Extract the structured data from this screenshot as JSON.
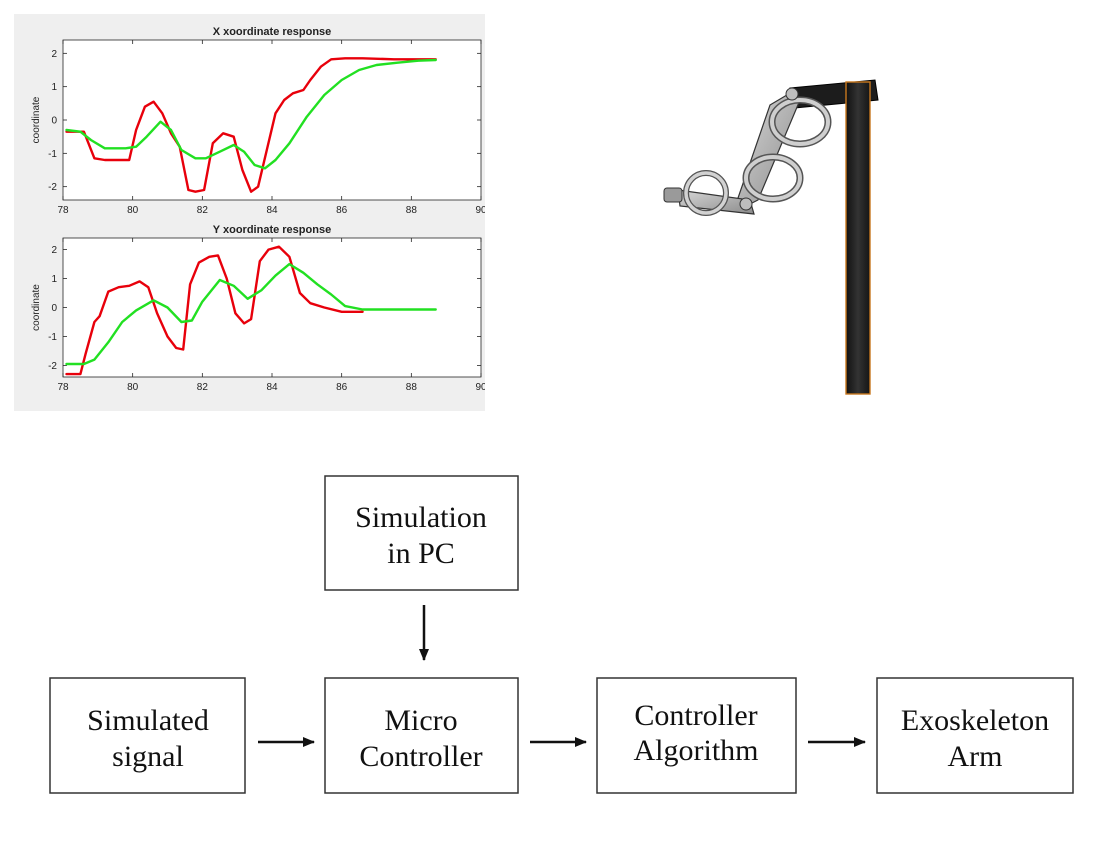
{
  "chart_data": [
    {
      "type": "line",
      "title": "X xoordinate response",
      "xlabel": "",
      "ylabel": "coordinate",
      "xlim": [
        78,
        90
      ],
      "ylim": [
        -2.4,
        2.4
      ],
      "xticks": [
        78,
        80,
        82,
        84,
        86,
        88,
        90
      ],
      "yticks": [
        -2,
        -1,
        0,
        1,
        2
      ],
      "grid": false,
      "series": [
        {
          "color": "#e8000b",
          "x": [
            78.1,
            78.6,
            78.9,
            79.2,
            79.7,
            79.9,
            80.1,
            80.35,
            80.6,
            80.85,
            81.1,
            81.35,
            81.6,
            81.8,
            82.05,
            82.3,
            82.6,
            82.9,
            83.15,
            83.4,
            83.6,
            83.85,
            84.1,
            84.35,
            84.6,
            84.9,
            85.1,
            85.4,
            85.7,
            86.1,
            86.6,
            87.5,
            88.7
          ],
          "y": [
            -0.35,
            -0.35,
            -1.15,
            -1.2,
            -1.2,
            -1.2,
            -0.3,
            0.4,
            0.55,
            0.2,
            -0.4,
            -0.8,
            -2.1,
            -2.15,
            -2.1,
            -0.7,
            -0.4,
            -0.5,
            -1.5,
            -2.15,
            -2.0,
            -0.9,
            0.2,
            0.6,
            0.8,
            0.9,
            1.2,
            1.6,
            1.82,
            1.85,
            1.85,
            1.82,
            1.82
          ]
        },
        {
          "color": "#22e022",
          "x": [
            78.1,
            78.5,
            78.8,
            79.2,
            79.8,
            80.1,
            80.4,
            80.8,
            81.1,
            81.4,
            81.8,
            82.1,
            82.5,
            82.9,
            83.2,
            83.5,
            83.8,
            84.1,
            84.5,
            85.0,
            85.5,
            86.0,
            86.5,
            87.0,
            87.6,
            88.2,
            88.7
          ],
          "y": [
            -0.3,
            -0.35,
            -0.6,
            -0.85,
            -0.85,
            -0.8,
            -0.5,
            -0.05,
            -0.3,
            -0.9,
            -1.15,
            -1.15,
            -0.95,
            -0.75,
            -0.95,
            -1.35,
            -1.45,
            -1.2,
            -0.7,
            0.1,
            0.75,
            1.2,
            1.5,
            1.65,
            1.72,
            1.78,
            1.8
          ]
        }
      ]
    },
    {
      "type": "line",
      "title": "Y xoordinate response",
      "xlabel": "",
      "ylabel": "coordinate",
      "xlim": [
        78,
        90
      ],
      "ylim": [
        -2.4,
        2.4
      ],
      "xticks": [
        78,
        80,
        82,
        84,
        86,
        88,
        90
      ],
      "yticks": [
        -2,
        -1,
        0,
        1,
        2
      ],
      "grid": false,
      "series": [
        {
          "color": "#e8000b",
          "x": [
            78.1,
            78.5,
            78.65,
            78.9,
            79.05,
            79.3,
            79.6,
            79.9,
            80.2,
            80.45,
            80.7,
            81.0,
            81.25,
            81.45,
            81.65,
            81.9,
            82.2,
            82.45,
            82.7,
            82.95,
            83.2,
            83.4,
            83.65,
            83.9,
            84.2,
            84.5,
            84.8,
            85.1,
            85.5,
            86.0,
            86.6
          ],
          "y": [
            -2.3,
            -2.3,
            -1.6,
            -0.5,
            -0.3,
            0.55,
            0.7,
            0.75,
            0.9,
            0.7,
            -0.2,
            -1.0,
            -1.4,
            -1.45,
            0.8,
            1.55,
            1.75,
            1.8,
            1.0,
            -0.2,
            -0.55,
            -0.4,
            1.6,
            2.0,
            2.1,
            1.75,
            0.5,
            0.15,
            0.0,
            -0.15,
            -0.15
          ]
        },
        {
          "color": "#22e022",
          "x": [
            78.1,
            78.6,
            78.9,
            79.3,
            79.7,
            80.1,
            80.6,
            81.0,
            81.4,
            81.7,
            82.0,
            82.5,
            82.9,
            83.3,
            83.7,
            84.1,
            84.5,
            84.9,
            85.3,
            85.7,
            86.1,
            86.6,
            87.2,
            88.0,
            88.7
          ],
          "y": [
            -1.95,
            -1.95,
            -1.8,
            -1.2,
            -0.5,
            -0.1,
            0.25,
            0.0,
            -0.5,
            -0.45,
            0.2,
            0.95,
            0.75,
            0.3,
            0.6,
            1.1,
            1.5,
            1.2,
            0.8,
            0.45,
            0.05,
            -0.07,
            -0.07,
            -0.07,
            -0.07
          ]
        }
      ]
    }
  ],
  "diagram": {
    "boxes": [
      {
        "id": "simulation-in-pc",
        "lines": [
          "Simulation",
          "in PC"
        ]
      },
      {
        "id": "simulated-signal",
        "lines": [
          "Simulated",
          "signal"
        ]
      },
      {
        "id": "micro-controller",
        "lines": [
          "Micro",
          "Controller"
        ]
      },
      {
        "id": "controller-algorithm",
        "lines": [
          "Controller",
          "Algorithm"
        ]
      },
      {
        "id": "exoskeleton-arm",
        "lines": [
          "Exoskeleton",
          "Arm"
        ]
      }
    ]
  }
}
